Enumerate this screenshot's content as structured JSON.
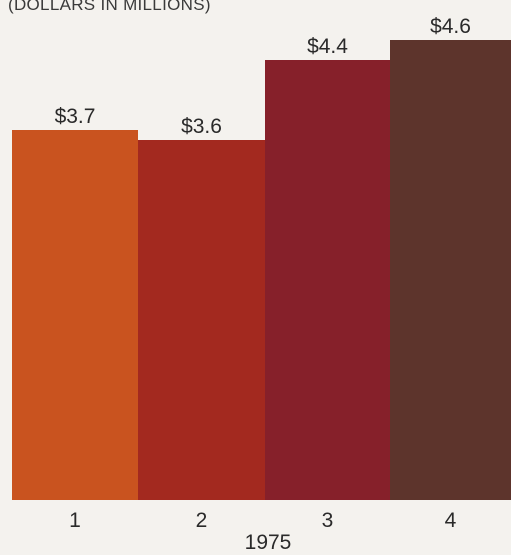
{
  "chart_data": {
    "type": "bar",
    "unit_label": "(DOLLARS IN MILLIONS)",
    "categories": [
      "1",
      "2",
      "3",
      "4"
    ],
    "values": [
      3.7,
      3.6,
      4.4,
      4.6
    ],
    "value_labels": [
      "$3.7",
      "$3.6",
      "$4.4",
      "$4.6"
    ],
    "xlabel": "1975",
    "ylabel": "",
    "ylim": [
      0,
      4.8
    ],
    "grid": false,
    "colors": [
      "#c9531f",
      "#a3291f",
      "#86202a",
      "#5d342c"
    ]
  }
}
